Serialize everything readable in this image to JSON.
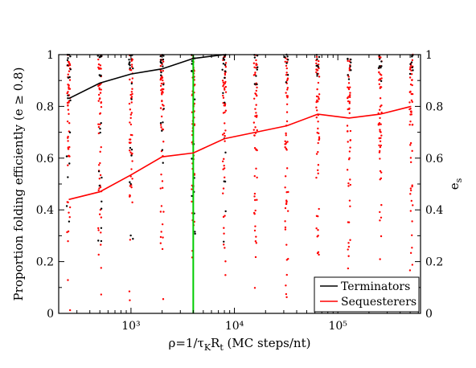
{
  "chart_data": {
    "type": "scatter",
    "xscale": "log",
    "xlim": [
      200,
      630000
    ],
    "ylim": [
      0,
      1
    ],
    "y2lim": [
      0,
      1
    ],
    "xlabel": "ρ=1/τKRt (MC steps/nt)",
    "ylabel": "Proportion folding efficiently  (e ≥ 0.8)",
    "y2label": "es",
    "x_tick_labels": [
      "10³",
      "10⁴",
      "10⁵"
    ],
    "y_tick_labels": [
      "0",
      "0.2",
      "0.4",
      "0.6",
      "0.8",
      "1"
    ],
    "y2_tick_labels": [
      "0",
      "0.2",
      "0.4",
      "0.6",
      "0.8",
      "1"
    ],
    "vertical_marker": {
      "x": 4000,
      "color": "#00cc00"
    },
    "legend_position": "bottom-right",
    "legend": [
      "Terminators",
      "Sequesterers"
    ],
    "series": [
      {
        "name": "Terminators",
        "color": "#000000",
        "x": [
          250,
          500,
          1000,
          2000,
          4000,
          8000
        ],
        "values": [
          0.83,
          0.89,
          0.925,
          0.945,
          0.985,
          1.0
        ]
      },
      {
        "name": "Sequesterers",
        "color": "#ff0000",
        "x": [
          250,
          500,
          1000,
          2000,
          4000,
          8000,
          16000,
          32000,
          64000,
          128000,
          256000,
          512000
        ],
        "values": [
          0.44,
          0.47,
          0.535,
          0.605,
          0.62,
          0.675,
          0.7,
          0.725,
          0.77,
          0.755,
          0.77,
          0.8
        ]
      }
    ]
  }
}
